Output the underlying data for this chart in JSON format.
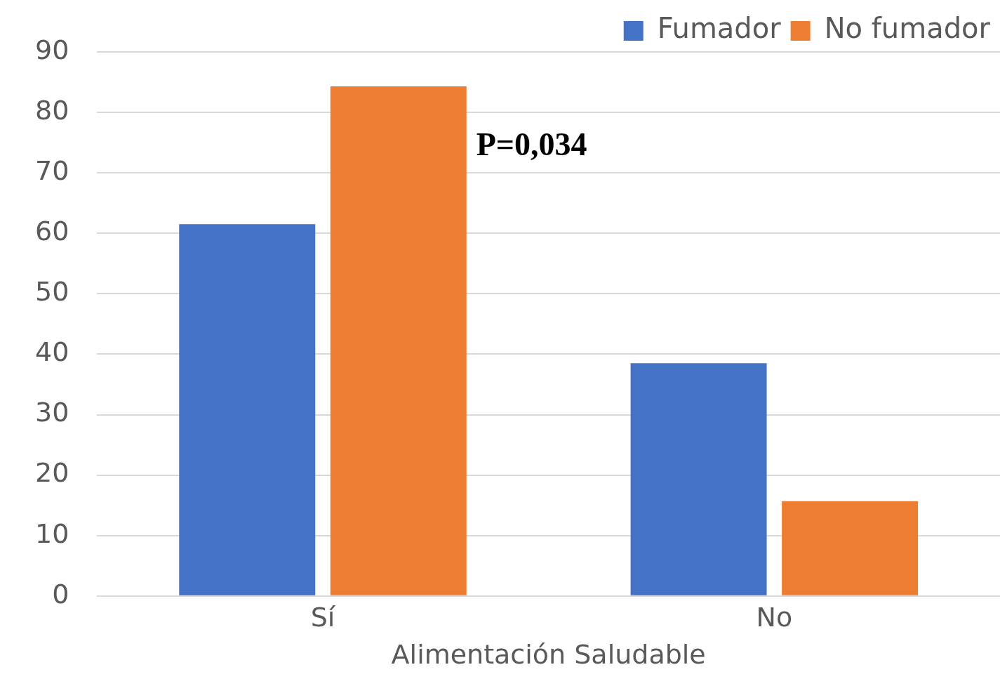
{
  "chart_data": {
    "type": "bar",
    "xlabel": "Alimentación Saludable",
    "categories": [
      "Sí",
      "No"
    ],
    "series": [
      {
        "name": "Fumador",
        "color": "#4472c4",
        "values": [
          61.5,
          38.5
        ]
      },
      {
        "name": "No fumador",
        "color": "#ed7d31",
        "values": [
          84.3,
          15.7
        ]
      }
    ],
    "ylim": [
      0,
      90
    ],
    "yticks": [
      0,
      10,
      20,
      30,
      40,
      50,
      60,
      70,
      80,
      90
    ],
    "grid": "y",
    "legend": "top right",
    "annotations": [
      "P=0,034"
    ]
  }
}
